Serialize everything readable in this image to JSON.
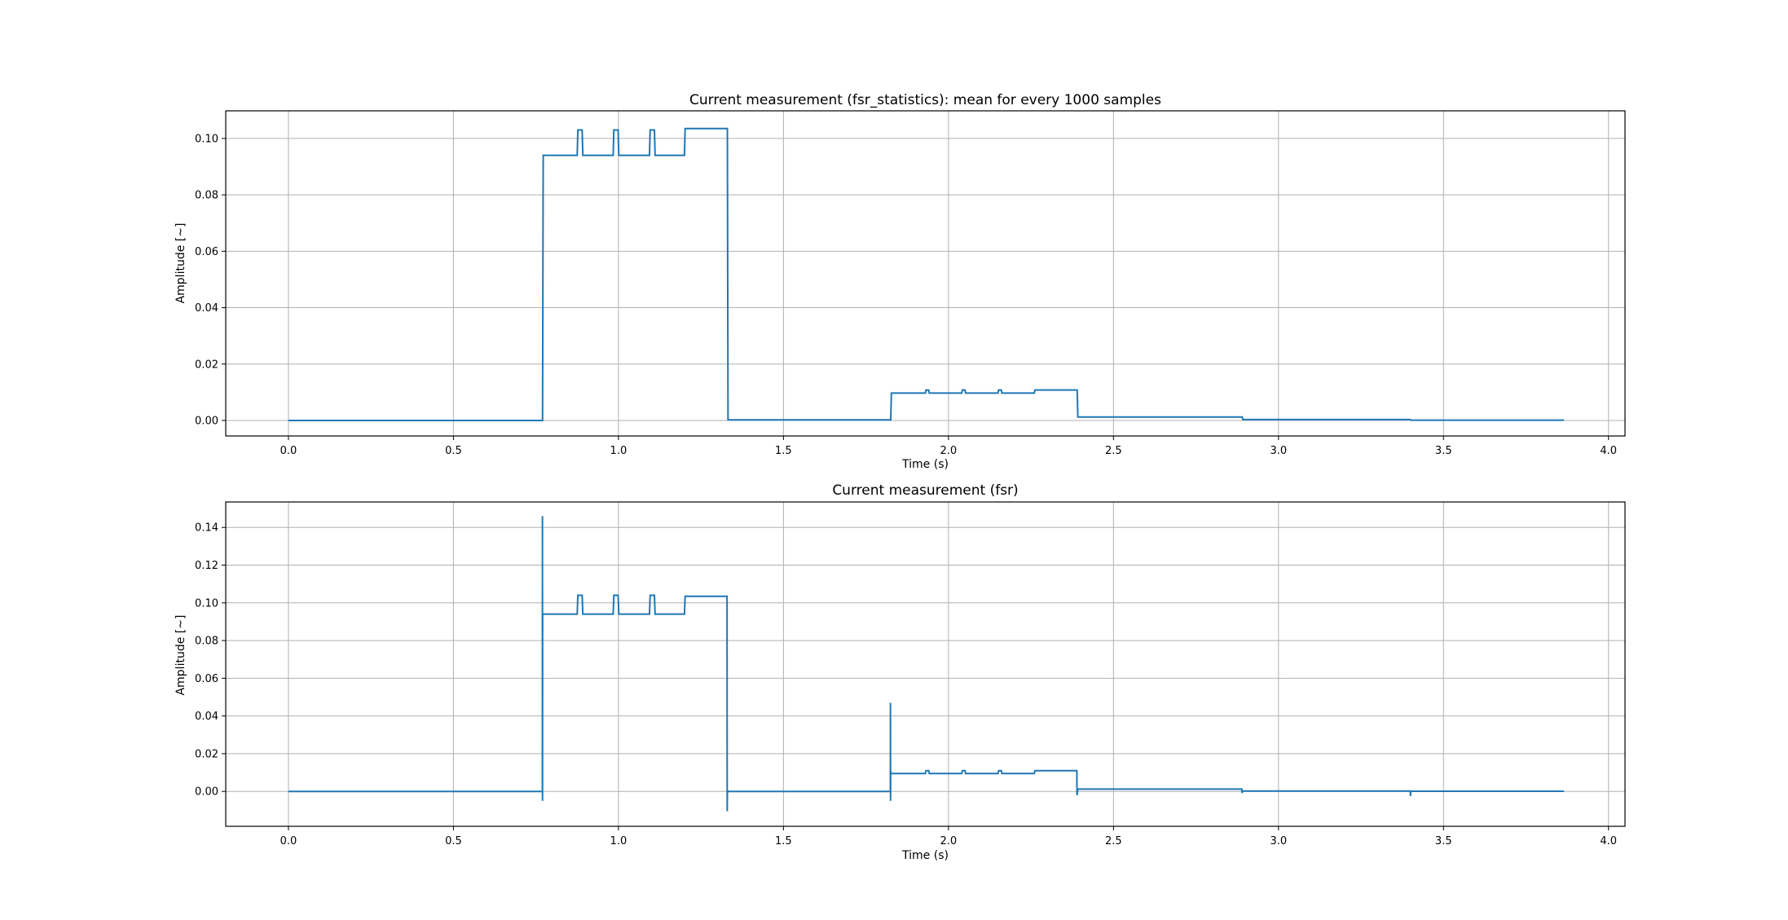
{
  "chart_data": [
    {
      "type": "line",
      "title": "Current measurement (fsr_statistics): mean for every 1000 samples",
      "xlabel": "Time (s)",
      "ylabel": "Amplitude [~]",
      "xlim": [
        -0.19,
        4.05
      ],
      "ylim": [
        -0.0055,
        0.1098
      ],
      "xticks": [
        0.0,
        0.5,
        1.0,
        1.5,
        2.0,
        2.5,
        3.0,
        3.5,
        4.0
      ],
      "xtick_labels": [
        "0.0",
        "0.5",
        "1.0",
        "1.5",
        "2.0",
        "2.5",
        "3.0",
        "3.5",
        "4.0"
      ],
      "yticks": [
        0.0,
        0.02,
        0.04,
        0.06,
        0.08,
        0.1
      ],
      "ytick_labels": [
        "0.00",
        "0.02",
        "0.04",
        "0.06",
        "0.08",
        "0.10"
      ],
      "grid": true,
      "color": "#1f77b4",
      "series": [
        {
          "x": [
            0.0,
            0.77,
            0.772,
            0.875,
            0.877,
            0.89,
            0.892,
            0.984,
            0.986,
            0.999,
            1.001,
            1.094,
            1.096,
            1.109,
            1.111,
            1.2,
            1.202,
            1.33,
            1.332,
            1.825,
            1.827,
            1.93,
            1.932,
            1.94,
            1.942,
            2.04,
            2.042,
            2.05,
            2.052,
            2.15,
            2.152,
            2.16,
            2.162,
            2.26,
            2.262,
            2.39,
            2.392,
            2.89,
            2.892,
            3.4,
            3.402,
            3.865
          ],
          "y": [
            0.0,
            0.0,
            0.094,
            0.094,
            0.103,
            0.103,
            0.094,
            0.094,
            0.103,
            0.103,
            0.094,
            0.094,
            0.103,
            0.103,
            0.094,
            0.094,
            0.1035,
            0.1035,
            0.0002,
            0.0002,
            0.0097,
            0.0097,
            0.0108,
            0.0108,
            0.0097,
            0.0097,
            0.0108,
            0.0108,
            0.0097,
            0.0097,
            0.0108,
            0.0108,
            0.0097,
            0.0097,
            0.0108,
            0.0108,
            0.0012,
            0.0012,
            0.0003,
            0.0003,
            0.0001,
            0.0001
          ]
        }
      ]
    },
    {
      "type": "line",
      "title": "Current measurement (fsr)",
      "xlabel": "Time (s)",
      "ylabel": "Amplitude [~]",
      "xlim": [
        -0.19,
        4.05
      ],
      "ylim": [
        -0.0185,
        0.1535
      ],
      "xticks": [
        0.0,
        0.5,
        1.0,
        1.5,
        2.0,
        2.5,
        3.0,
        3.5,
        4.0
      ],
      "xtick_labels": [
        "0.0",
        "0.5",
        "1.0",
        "1.5",
        "2.0",
        "2.5",
        "3.0",
        "3.5",
        "4.0"
      ],
      "yticks": [
        0.0,
        0.02,
        0.04,
        0.06,
        0.08,
        0.1,
        0.12,
        0.14
      ],
      "ytick_labels": [
        "0.00",
        "0.02",
        "0.04",
        "0.06",
        "0.08",
        "0.10",
        "0.12",
        "0.14"
      ],
      "grid": true,
      "color": "#1f77b4",
      "series": [
        {
          "x": [
            0.0,
            0.7695,
            0.7697,
            0.7699,
            0.7702,
            0.7705,
            0.875,
            0.877,
            0.89,
            0.892,
            0.984,
            0.986,
            0.999,
            1.001,
            1.094,
            1.096,
            1.109,
            1.111,
            1.2,
            1.202,
            1.329,
            1.3295,
            1.33,
            1.332,
            1.824,
            1.8242,
            1.8245,
            1.8248,
            1.826,
            1.93,
            1.932,
            1.94,
            1.942,
            2.04,
            2.042,
            2.05,
            2.052,
            2.15,
            2.152,
            2.16,
            2.162,
            2.26,
            2.262,
            2.389,
            2.3895,
            2.392,
            2.889,
            2.8895,
            2.892,
            3.3995,
            3.4,
            3.4005,
            3.865
          ],
          "y": [
            0.0,
            0.0,
            0.146,
            -0.005,
            0.094,
            0.094,
            0.094,
            0.104,
            0.104,
            0.094,
            0.094,
            0.104,
            0.104,
            0.094,
            0.094,
            0.104,
            0.104,
            0.094,
            0.094,
            0.1035,
            0.1035,
            -0.0105,
            0.0005,
            0.0,
            0.0,
            0.047,
            -0.005,
            0.011,
            0.0095,
            0.0095,
            0.011,
            0.011,
            0.0095,
            0.0095,
            0.011,
            0.011,
            0.0095,
            0.0095,
            0.011,
            0.011,
            0.0095,
            0.0095,
            0.011,
            0.011,
            -0.002,
            0.0012,
            0.0012,
            -0.0008,
            0.0002,
            0.0002,
            -0.0025,
            0.0001,
            0.0001
          ]
        }
      ]
    }
  ]
}
